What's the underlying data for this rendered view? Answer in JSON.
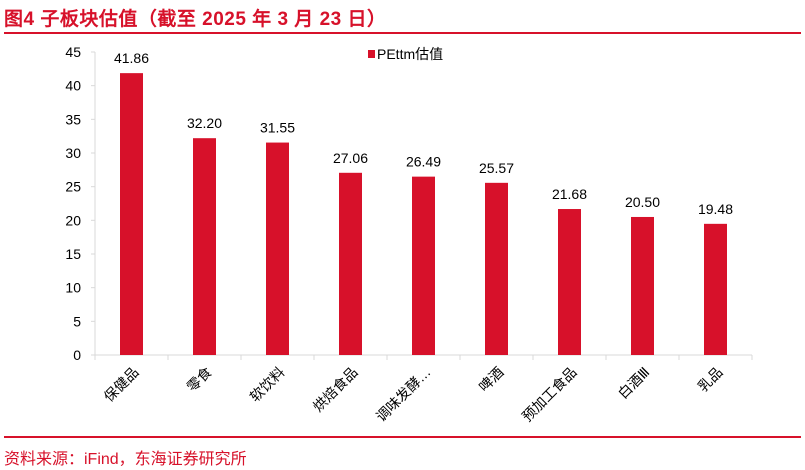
{
  "header": {
    "title": "图4  子板块估值（截至 2025 年 3 月 23 日）"
  },
  "footer": {
    "source": "资料来源：iFind，东海证券研究所"
  },
  "colors": {
    "accent": "#d7112a",
    "bar": "#d7112a",
    "axis": "#d9d9d9"
  },
  "chart_data": {
    "type": "bar",
    "title": "",
    "xlabel": "",
    "ylabel": "",
    "categories": [
      "保健品",
      "零食",
      "软饮料",
      "烘焙食品",
      "调味发酵…",
      "啤酒",
      "预加工食品",
      "白酒Ⅲ",
      "乳品"
    ],
    "series": [
      {
        "name": "PEttm估值",
        "values": [
          41.86,
          32.2,
          31.55,
          27.06,
          26.49,
          25.57,
          21.68,
          20.5,
          19.48
        ]
      }
    ],
    "data_labels": [
      "41.86",
      "32.20",
      "31.55",
      "27.06",
      "26.49",
      "25.57",
      "21.68",
      "20.50",
      "19.48"
    ],
    "ylim": [
      0,
      45
    ],
    "yticks": [
      "0",
      "5",
      "10",
      "15",
      "20",
      "25",
      "30",
      "35",
      "40",
      "45"
    ],
    "grid": false,
    "legend_position": "top-center"
  }
}
